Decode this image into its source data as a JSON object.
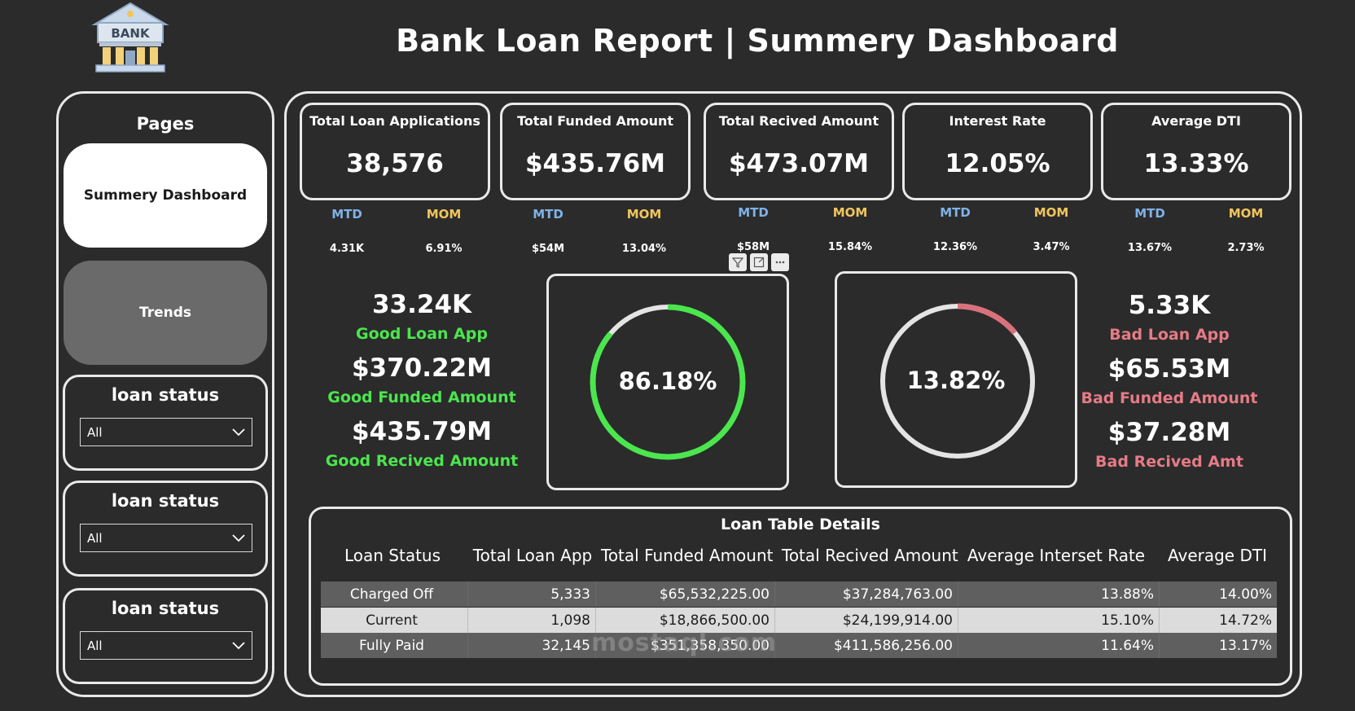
{
  "header": {
    "logo_text": "BANK",
    "title": "Bank Loan Report | Summery Dashboard"
  },
  "sidebar": {
    "pages_title": "Pages",
    "nav": [
      {
        "label": "Summery Dashboard",
        "active": true
      },
      {
        "label": "Trends",
        "active": false
      }
    ],
    "slicers": [
      {
        "title": "loan status",
        "value": "All"
      },
      {
        "title": "loan status",
        "value": "All"
      },
      {
        "title": "loan status",
        "value": "All"
      }
    ]
  },
  "kpis": [
    {
      "label": "Total Loan Applications",
      "value": "38,576",
      "mtd_label": "MTD",
      "mom_label": "MOM",
      "mtd": "4.31K",
      "mom": "6.91%"
    },
    {
      "label": "Total Funded Amount",
      "value": "$435.76M",
      "mtd_label": "MTD",
      "mom_label": "MOM",
      "mtd": "$54M",
      "mom": "13.04%"
    },
    {
      "label": "Total Recived Amount",
      "value": "$473.07M",
      "mtd_label": "MTD",
      "mom_label": "MOM",
      "mtd": "$58M",
      "mom": "15.84%"
    },
    {
      "label": "Interest Rate",
      "value": "12.05%",
      "mtd_label": "MTD",
      "mom_label": "MOM",
      "mtd": "12.36%",
      "mom": "3.47%"
    },
    {
      "label": "Average DTI",
      "value": "13.33%",
      "mtd_label": "MTD",
      "mom_label": "MOM",
      "mtd": "13.67%",
      "mom": "2.73%"
    }
  ],
  "good_loans": {
    "app_value": "33.24K",
    "app_label": "Good Loan App",
    "funded_value": "$370.22M",
    "funded_label": "Good Funded Amount",
    "received_value": "$435.79M",
    "received_label": "Good Recived Amount",
    "percent_label": "86.18%",
    "percent": 86.18,
    "color": "#4be64e"
  },
  "bad_loans": {
    "app_value": "5.33K",
    "app_label": "Bad Loan App",
    "funded_value": "$65.53M",
    "funded_label": "Bad Funded Amount",
    "received_value": "$37.28M",
    "received_label": "Bad Recived Amt",
    "percent_label": "13.82%",
    "percent": 13.82,
    "color": "#d9727d"
  },
  "visual_toolbar": {
    "icons": [
      "filter-icon",
      "focus-mode-icon",
      "more-options-icon"
    ]
  },
  "loan_table": {
    "title": "Loan Table Details",
    "columns": [
      "Loan Status",
      "Total Loan App",
      "Total Funded Amount",
      "Total Recived Amount",
      "Average Interset Rate",
      "Average DTI"
    ],
    "rows": [
      [
        "Charged Off",
        "5,333",
        "$65,532,225.00",
        "$37,284,763.00",
        "13.88%",
        "14.00%"
      ],
      [
        "Current",
        "1,098",
        "$18,866,500.00",
        "$24,199,914.00",
        "15.10%",
        "14.72%"
      ],
      [
        "Fully Paid",
        "32,145",
        "$351,358,350.00",
        "$411,586,256.00",
        "11.64%",
        "13.17%"
      ]
    ]
  },
  "watermark": "mostaql.com",
  "colors": {
    "background": "#2b2b2b",
    "good": "#4be64e",
    "bad": "#e57b86",
    "mtd": "#7fb2e8",
    "mom": "#f2c55c"
  }
}
